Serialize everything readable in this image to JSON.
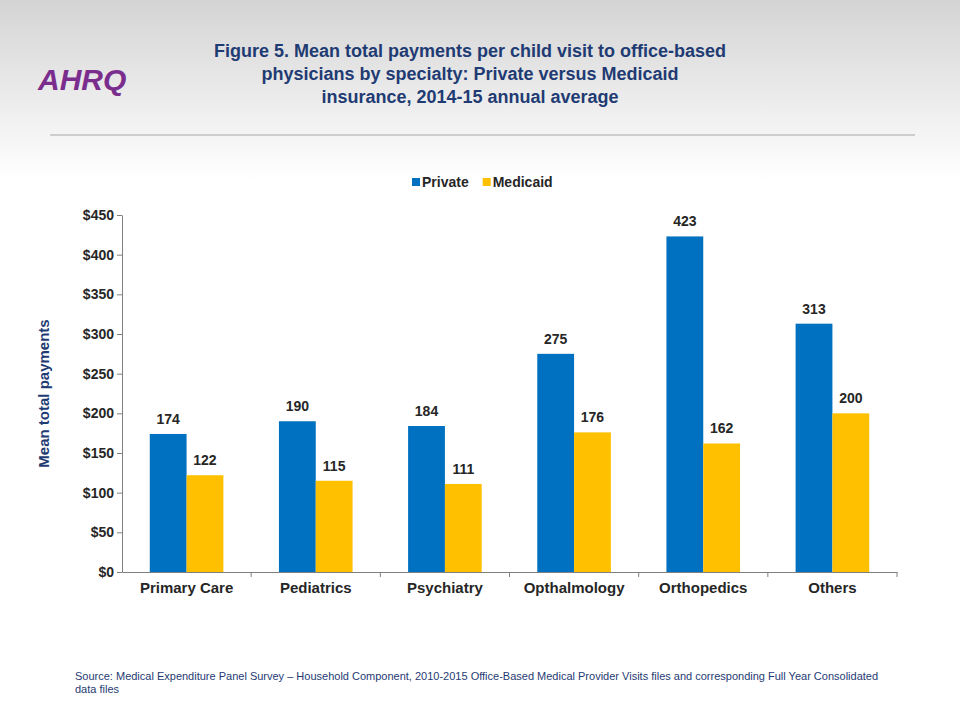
{
  "chart_data": {
    "type": "bar",
    "title": "Figure 5. Mean total payments per child visit to office-based\nphysicians by specialty: Private versus Medicaid\ninsurance, 2014-15 annual average",
    "logo": "AHRQ",
    "y_label": "Mean total payments",
    "source": "Source: Medical Expenditure Panel Survey – Household Component, 2010-2015 Office-Based Medical Provider Visits files and corresponding Full Year Consolidated data files",
    "categories": [
      "Primary Care",
      "Pediatrics",
      "Psychiatry",
      "Opthalmology",
      "Orthopedics",
      "Others"
    ],
    "series": [
      {
        "name": "Private",
        "color": "#0070c0",
        "values": [
          174,
          190,
          184,
          275,
          423,
          313
        ]
      },
      {
        "name": "Medicaid",
        "color": "#ffc000",
        "values": [
          122,
          115,
          111,
          176,
          162,
          200
        ]
      }
    ],
    "ylim": [
      0,
      450
    ],
    "yticks": [
      {
        "value": 0,
        "label": "$0"
      },
      {
        "value": 50,
        "label": "$50"
      },
      {
        "value": 100,
        "label": "$100"
      },
      {
        "value": 150,
        "label": "$150"
      },
      {
        "value": 200,
        "label": "$200"
      },
      {
        "value": 250,
        "label": "$250"
      },
      {
        "value": 300,
        "label": "$300"
      },
      {
        "value": 350,
        "label": "$350"
      },
      {
        "value": 400,
        "label": "$400"
      },
      {
        "value": 450,
        "label": "$450"
      }
    ],
    "grid": false,
    "legend": "top",
    "data_labels": true
  }
}
